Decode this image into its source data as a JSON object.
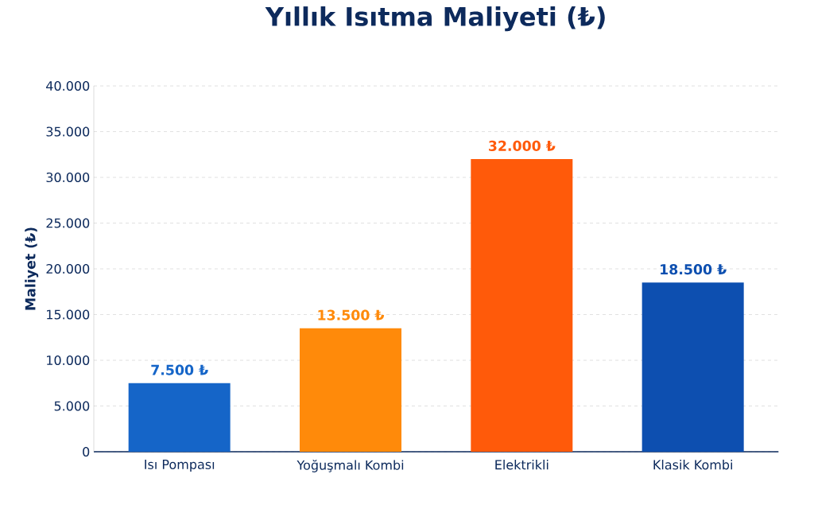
{
  "chart_data": {
    "type": "bar",
    "title": "Yıllık Isıtma Maliyeti (₺)",
    "ylabel": "Maliyet (₺)",
    "categories": [
      "Isı Pompası",
      "Yoğuşmalı Kombi",
      "Elektrikli",
      "Klasik Kombi"
    ],
    "values": [
      7500,
      13500,
      32000,
      18500
    ],
    "colors": [
      "#1565c8",
      "#ff8a0a",
      "#ff5a0a",
      "#0d4fb0"
    ],
    "value_labels": [
      "7.500 ₺",
      "13.500 ₺",
      "32.000 ₺",
      "18.500 ₺"
    ],
    "ylim": [
      0,
      40000
    ],
    "yticks": [
      0,
      {
        "value": 5000,
        "label": "5.000"
      },
      {
        "value": 10000,
        "label": "10.000"
      },
      {
        "value": 15000,
        "label": "15.000"
      },
      {
        "value": 20000,
        "label": "20.000"
      },
      {
        "value": 25000,
        "label": "25.000"
      },
      {
        "value": 30000,
        "label": "30.000"
      },
      {
        "value": 35000,
        "label": "35.000"
      },
      {
        "value": 40000,
        "label": "40.000"
      }
    ],
    "grid": "y"
  }
}
